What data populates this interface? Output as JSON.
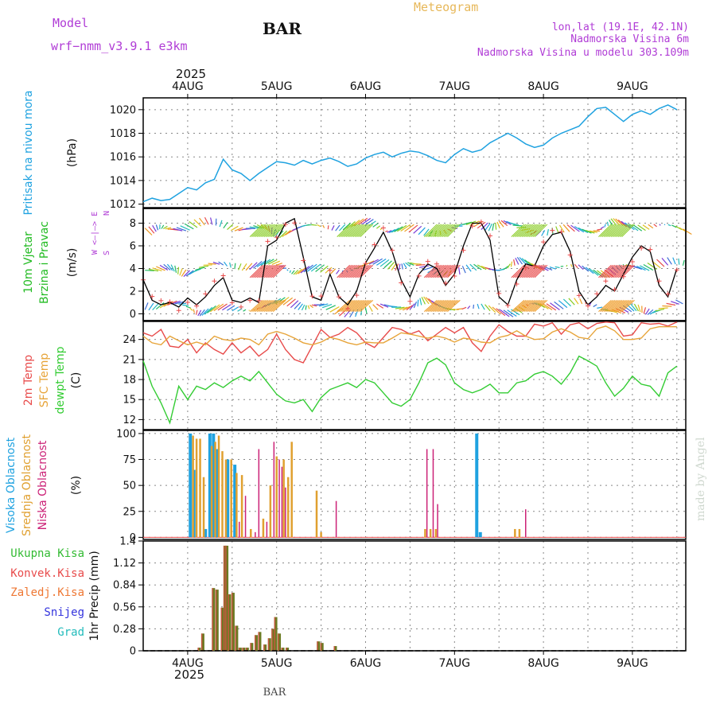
{
  "header": {
    "model_label": "Model",
    "model_name": "wrf−nmm_v3.9.1  e3km",
    "station": "BAR",
    "app_title": "Meteogram",
    "lonlat": "lon,lat (19.1E, 42.1N)",
    "elevation": "Nadmorska Visina 6m",
    "model_elevation": "Nadmorska Visina u modelu 303.109m",
    "footer_station": "BAR",
    "watermark": "made by Angel"
  },
  "time_axis": {
    "year": "2025",
    "day_labels": [
      "4AUG",
      "5AUG",
      "6AUG",
      "7AUG",
      "8AUG",
      "9AUG"
    ],
    "day_start": 3.5,
    "day_end": 9.6
  },
  "colors": {
    "pressure": "#1fa2e0",
    "wind_title": "#22bb22",
    "wind_dir": "#b03cd6",
    "t2m": "#e84b4b",
    "sfc": "#e7a439",
    "dewpt": "#33cc33",
    "high_cloud": "#1fa2e0",
    "mid_cloud": "#e0a030",
    "low_cloud": "#cc2277",
    "rain_total": "#33bb33",
    "rain_conv": "#e84b4b",
    "rain_frz": "#ee7733",
    "snow": "#3333dd",
    "graupel": "#22bbbb",
    "precip_bar": "#6b7a22"
  },
  "chart_data": [
    {
      "type": "line",
      "panel": "pressure",
      "ylabel_left": "Pritisak na nivou mora",
      "ylabel_unit": "(hPa)",
      "yticks": [
        "1012",
        "1014",
        "1016",
        "1018",
        "1020"
      ],
      "ylim": [
        1011.7,
        1021.0
      ],
      "series": [
        {
          "name": "Pritisak na nivou mora",
          "x": [
            3.5,
            3.6,
            3.7,
            3.8,
            3.9,
            4.0,
            4.1,
            4.2,
            4.3,
            4.4,
            4.5,
            4.6,
            4.7,
            4.8,
            4.9,
            5.0,
            5.1,
            5.2,
            5.3,
            5.4,
            5.5,
            5.6,
            5.7,
            5.8,
            5.9,
            6.0,
            6.1,
            6.2,
            6.3,
            6.4,
            6.5,
            6.6,
            6.7,
            6.8,
            6.9,
            7.0,
            7.1,
            7.2,
            7.3,
            7.4,
            7.5,
            7.6,
            7.7,
            7.8,
            7.9,
            8.0,
            8.1,
            8.2,
            8.3,
            8.4,
            8.5,
            8.6,
            8.7,
            8.8,
            8.9,
            9.0,
            9.1,
            9.2,
            9.3,
            9.4,
            9.5
          ],
          "values": [
            1012.2,
            1012.5,
            1012.3,
            1012.4,
            1012.9,
            1013.4,
            1013.2,
            1013.8,
            1014.1,
            1015.8,
            1014.9,
            1014.6,
            1014.0,
            1014.6,
            1015.1,
            1015.6,
            1015.5,
            1015.3,
            1015.7,
            1015.4,
            1015.7,
            1015.9,
            1015.6,
            1015.2,
            1015.4,
            1015.9,
            1016.2,
            1016.4,
            1016.0,
            1016.3,
            1016.5,
            1016.4,
            1016.1,
            1015.7,
            1015.5,
            1016.2,
            1016.7,
            1016.4,
            1016.6,
            1017.2,
            1017.6,
            1018.0,
            1017.6,
            1017.1,
            1016.8,
            1017.0,
            1017.6,
            1018.0,
            1018.3,
            1018.6,
            1019.4,
            1020.1,
            1020.2,
            1019.6,
            1019.0,
            1019.6,
            1019.9,
            1019.6,
            1020.1,
            1020.4,
            1020.0
          ]
        }
      ]
    },
    {
      "type": "line",
      "panel": "wind",
      "ylabel_left": [
        "10m Vjetar",
        "Brzina i Pravac"
      ],
      "ylabel_unit": "(m/s)",
      "dir_legend": [
        "N",
        "W <—|—> E",
        "S"
      ],
      "yticks": [
        "0",
        "2",
        "4",
        "6",
        "8"
      ],
      "ylim": [
        -0.6,
        9.3
      ],
      "series": [
        {
          "name": "Brzina",
          "x": [
            3.5,
            3.6,
            3.7,
            3.8,
            3.9,
            4.0,
            4.1,
            4.2,
            4.3,
            4.4,
            4.5,
            4.6,
            4.7,
            4.8,
            4.9,
            5.0,
            5.1,
            5.2,
            5.3,
            5.4,
            5.5,
            5.6,
            5.7,
            5.8,
            5.9,
            6.0,
            6.1,
            6.2,
            6.3,
            6.4,
            6.5,
            6.6,
            6.7,
            6.8,
            6.9,
            7.0,
            7.1,
            7.2,
            7.3,
            7.4,
            7.5,
            7.6,
            7.7,
            7.8,
            7.9,
            8.0,
            8.1,
            8.2,
            8.3,
            8.4,
            8.5,
            8.6,
            8.7,
            8.8,
            8.9,
            9.0,
            9.1,
            9.2,
            9.3,
            9.4,
            9.5
          ],
          "values": [
            3.0,
            1.2,
            0.8,
            1.0,
            0.6,
            1.4,
            0.8,
            1.5,
            2.5,
            3.2,
            1.2,
            1.0,
            1.4,
            1.0,
            6.0,
            6.5,
            8.0,
            8.4,
            5.0,
            1.5,
            1.2,
            3.5,
            1.5,
            0.8,
            2.0,
            4.5,
            5.8,
            7.2,
            5.5,
            3.0,
            1.5,
            3.5,
            4.4,
            4.0,
            2.5,
            3.5,
            6.0,
            8.0,
            8.0,
            6.5,
            1.5,
            0.8,
            3.0,
            4.4,
            4.2,
            6.0,
            7.0,
            7.2,
            5.5,
            2.0,
            0.8,
            1.5,
            2.5,
            2.0,
            3.5,
            5.0,
            6.0,
            5.5,
            2.5,
            1.5,
            4.0
          ]
        }
      ]
    },
    {
      "type": "line",
      "panel": "temperature",
      "ylabel_left": [
        "2m Temp",
        "SFC Temp",
        "dewpt Temp"
      ],
      "ylabel_unit": "(C)",
      "yticks": [
        "12",
        "15",
        "18",
        "21",
        "24"
      ],
      "ylim": [
        10.5,
        26.7
      ],
      "series": [
        {
          "name": "2m Temp",
          "x": [
            3.5,
            3.6,
            3.7,
            3.8,
            3.9,
            4.0,
            4.1,
            4.2,
            4.3,
            4.4,
            4.5,
            4.6,
            4.7,
            4.8,
            4.9,
            5.0,
            5.1,
            5.2,
            5.3,
            5.4,
            5.5,
            5.6,
            5.7,
            5.8,
            5.9,
            6.0,
            6.1,
            6.2,
            6.3,
            6.4,
            6.5,
            6.6,
            6.7,
            6.8,
            6.9,
            7.0,
            7.1,
            7.2,
            7.3,
            7.4,
            7.5,
            7.6,
            7.7,
            7.8,
            7.9,
            8.0,
            8.1,
            8.2,
            8.3,
            8.4,
            8.5,
            8.6,
            8.7,
            8.8,
            8.9,
            9.0,
            9.1,
            9.2,
            9.3,
            9.4,
            9.5
          ],
          "values": [
            25.0,
            24.5,
            25.5,
            23.0,
            22.8,
            24.0,
            22.0,
            23.5,
            22.5,
            21.8,
            23.5,
            22.0,
            23.0,
            21.5,
            22.5,
            24.8,
            22.5,
            21.0,
            20.5,
            23.0,
            25.5,
            24.3,
            24.8,
            25.8,
            25.0,
            23.5,
            22.8,
            24.3,
            25.8,
            25.5,
            24.8,
            25.3,
            23.8,
            24.8,
            25.8,
            25.0,
            25.8,
            23.5,
            22.2,
            24.5,
            26.2,
            25.2,
            24.5,
            24.5,
            26.3,
            26.0,
            26.5,
            24.8,
            26.2,
            26.5,
            25.6,
            26.4,
            26.6,
            26.5,
            24.5,
            24.7,
            26.5,
            26.3,
            26.4,
            26.0,
            26.6
          ]
        },
        {
          "name": "SFC Temp",
          "x": [
            3.5,
            3.6,
            3.7,
            3.8,
            3.9,
            4.0,
            4.1,
            4.2,
            4.3,
            4.4,
            4.5,
            4.6,
            4.7,
            4.8,
            4.9,
            5.0,
            5.1,
            5.2,
            5.3,
            5.4,
            5.5,
            5.6,
            5.7,
            5.8,
            5.9,
            6.0,
            6.1,
            6.2,
            6.3,
            6.4,
            6.5,
            6.6,
            6.7,
            6.8,
            6.9,
            7.0,
            7.1,
            7.2,
            7.3,
            7.4,
            7.5,
            7.6,
            7.7,
            7.8,
            7.9,
            8.0,
            8.1,
            8.2,
            8.3,
            8.4,
            8.5,
            8.6,
            8.7,
            8.8,
            8.9,
            9.0,
            9.1,
            9.2,
            9.3,
            9.4,
            9.5
          ],
          "values": [
            24.5,
            23.5,
            23.2,
            24.5,
            23.8,
            23.2,
            23.6,
            23.2,
            24.5,
            24.0,
            23.8,
            24.2,
            24.0,
            23.2,
            24.8,
            25.2,
            24.8,
            24.2,
            23.5,
            23.2,
            23.6,
            24.3,
            24.0,
            23.5,
            23.2,
            23.6,
            23.5,
            23.5,
            24.2,
            25.0,
            24.8,
            24.5,
            24.2,
            24.5,
            24.2,
            23.6,
            24.2,
            24.0,
            23.6,
            23.5,
            24.3,
            24.6,
            25.3,
            24.5,
            24.0,
            24.1,
            25.1,
            25.6,
            25.1,
            24.3,
            24.1,
            25.6,
            26.0,
            25.3,
            24.0,
            24.0,
            24.2,
            25.6,
            25.9,
            25.9,
            25.9
          ]
        },
        {
          "name": "dewpt Temp",
          "x": [
            3.5,
            3.6,
            3.7,
            3.8,
            3.9,
            4.0,
            4.1,
            4.2,
            4.3,
            4.4,
            4.5,
            4.6,
            4.7,
            4.8,
            4.9,
            5.0,
            5.1,
            5.2,
            5.3,
            5.4,
            5.5,
            5.6,
            5.7,
            5.8,
            5.9,
            6.0,
            6.1,
            6.2,
            6.3,
            6.4,
            6.5,
            6.6,
            6.7,
            6.8,
            6.9,
            7.0,
            7.1,
            7.2,
            7.3,
            7.4,
            7.5,
            7.6,
            7.7,
            7.8,
            7.9,
            8.0,
            8.1,
            8.2,
            8.3,
            8.4,
            8.5,
            8.6,
            8.7,
            8.8,
            8.9,
            9.0,
            9.1,
            9.2,
            9.3,
            9.4,
            9.5
          ],
          "values": [
            20.8,
            17.0,
            14.5,
            11.5,
            17.0,
            15.0,
            17.0,
            16.5,
            17.5,
            16.8,
            17.8,
            18.5,
            17.8,
            19.2,
            17.5,
            15.8,
            14.8,
            14.5,
            15.0,
            13.2,
            15.3,
            16.5,
            17.0,
            17.5,
            16.8,
            18.0,
            17.5,
            16.0,
            14.5,
            14.0,
            15.0,
            17.5,
            20.5,
            21.2,
            20.2,
            17.5,
            16.5,
            16.0,
            16.5,
            17.3,
            16.0,
            16.0,
            17.5,
            17.8,
            18.8,
            19.2,
            18.5,
            17.3,
            19.0,
            21.5,
            20.8,
            20.0,
            17.5,
            15.5,
            16.7,
            18.5,
            17.3,
            17.0,
            15.5,
            19.0,
            20.0
          ]
        }
      ]
    },
    {
      "type": "bar",
      "panel": "cloud",
      "ylabel_left": [
        "Visoka Oblacnost",
        "Srednja Oblacnost",
        "Niska Oblacnost"
      ],
      "ylabel_unit": "(%)",
      "yticks": [
        "0",
        "25",
        "50",
        "75",
        "100"
      ],
      "ylim": [
        -2,
        103
      ],
      "series": [
        {
          "name": "Visoka Oblacnost",
          "x": [
            4.03,
            4.07,
            4.2,
            4.25,
            4.29,
            4.33,
            4.45,
            4.53,
            7.25,
            7.29
          ],
          "values": [
            100,
            65,
            8,
            100,
            100,
            85,
            75,
            70,
            100,
            5
          ]
        },
        {
          "name": "Srednja Oblacnost",
          "x": [
            4.06,
            4.1,
            4.14,
            4.18,
            4.27,
            4.31,
            4.35,
            4.39,
            4.43,
            4.49,
            4.55,
            4.61,
            4.71,
            4.85,
            4.93,
            5.0,
            5.08,
            5.13,
            5.17,
            5.45,
            5.5,
            6.67,
            6.73,
            6.79,
            7.68,
            7.73
          ],
          "values": [
            98,
            95,
            95,
            58,
            88,
            92,
            98,
            83,
            75,
            75,
            62,
            60,
            8,
            18,
            50,
            78,
            75,
            58,
            92,
            45,
            5,
            8,
            8,
            8,
            8,
            8
          ]
        },
        {
          "name": "Niska Oblacnost",
          "x": [
            4.58,
            4.65,
            4.76,
            4.8,
            4.89,
            4.97,
            5.03,
            5.06,
            5.1,
            5.67,
            6.69,
            6.76,
            6.81,
            7.8
          ],
          "values": [
            15,
            40,
            5,
            85,
            15,
            92,
            75,
            68,
            48,
            35,
            85,
            85,
            32,
            27
          ]
        }
      ]
    },
    {
      "type": "bar",
      "panel": "precip",
      "ylabel_left": [
        "Ukupna Kisa",
        "Konvek.Kisa",
        "Zaledj.Kisa",
        "Snijeg",
        "Grad"
      ],
      "ylabel_unit": "1hr Precip (mm)",
      "yticks": [
        "0",
        "0.28",
        "0.56",
        "0.84",
        "1.12",
        "1.4"
      ],
      "ylim": [
        0,
        1.4
      ],
      "series": [
        {
          "name": "Ukupna Kisa",
          "x": [
            4.13,
            4.17,
            4.29,
            4.33,
            4.39,
            4.42,
            4.44,
            4.47,
            4.51,
            4.55,
            4.59,
            4.63,
            4.67,
            4.72,
            4.77,
            4.81,
            4.87,
            4.92,
            4.96,
            4.99,
            5.03,
            5.07,
            5.12,
            5.47,
            5.51,
            5.66
          ],
          "values": [
            0.04,
            0.22,
            0.8,
            0.78,
            0.55,
            1.34,
            1.34,
            0.72,
            0.74,
            0.32,
            0.04,
            0.04,
            0.04,
            0.1,
            0.2,
            0.24,
            0.08,
            0.16,
            0.28,
            0.43,
            0.22,
            0.04,
            0.04,
            0.12,
            0.1,
            0.06
          ]
        }
      ]
    }
  ]
}
